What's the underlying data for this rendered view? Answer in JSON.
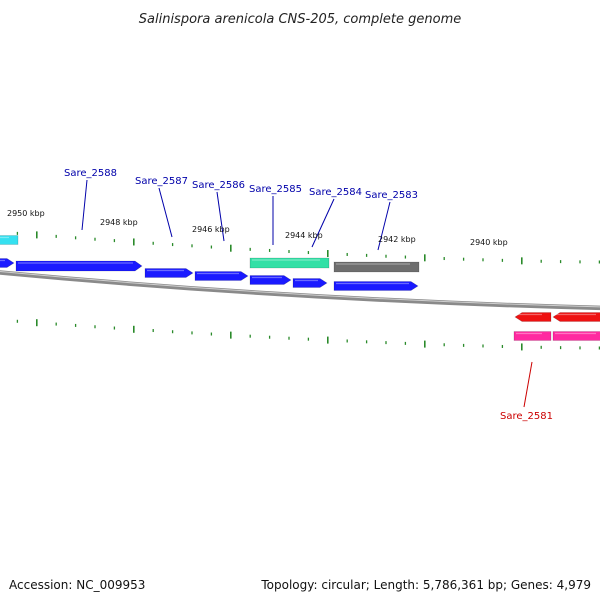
{
  "title": "Salinispora arenicola CNS-205, complete genome",
  "accession": "Accession: NC_009953",
  "summary": "Topology: circular; Length: 5,786,361 bp; Genes: 4,979",
  "colors": {
    "background": "#ffffff",
    "backbone": "#8a8a8a",
    "forward_gene": "#1a1aff",
    "teal_gene": "#33e0a6",
    "gray_gene": "#6e6e6e",
    "cyan_gene": "#35e0f0",
    "red_gene": "#ee1111",
    "pink_gene": "#ff2aa0",
    "tick": "#2a8a2a",
    "label_blue": "#0000aa",
    "label_red": "#cc0000"
  },
  "kbp_ticks": [
    {
      "label": "2950 kbp"
    },
    {
      "label": "2948 kbp"
    },
    {
      "label": "2946 kbp"
    },
    {
      "label": "2944 kbp"
    },
    {
      "label": "2942 kbp"
    },
    {
      "label": "2940 kbp"
    }
  ],
  "genes": [
    {
      "name": "Sare_2588",
      "color": "blue"
    },
    {
      "name": "Sare_2587",
      "color": "blue"
    },
    {
      "name": "Sare_2586",
      "color": "blue"
    },
    {
      "name": "Sare_2585",
      "color": "blue"
    },
    {
      "name": "Sare_2584",
      "color": "blue"
    },
    {
      "name": "Sare_2583",
      "color": "blue"
    },
    {
      "name": "Sare_2581",
      "color": "red"
    }
  ]
}
